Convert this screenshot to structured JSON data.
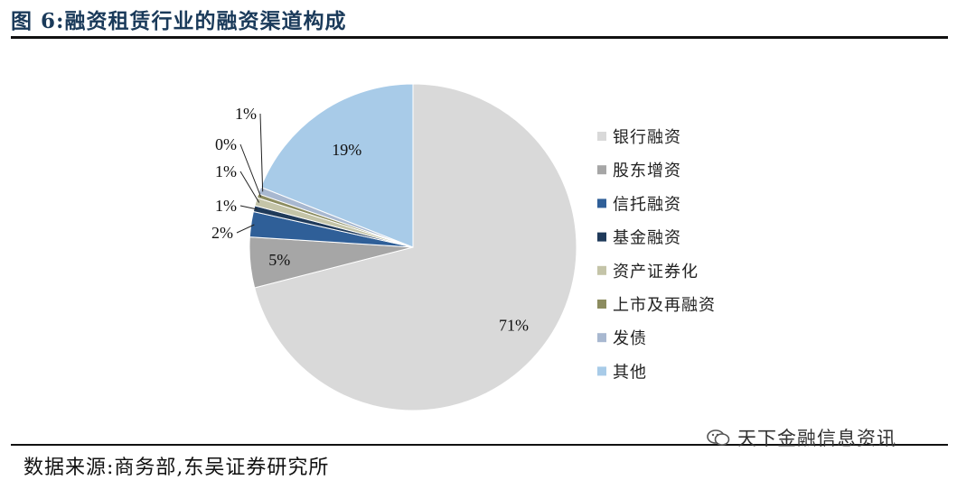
{
  "title": "图 6:融资租赁行业的融资渠道构成",
  "source": "数据来源:商务部,东吴证券研究所",
  "watermark": "天下金融信息资讯",
  "chart_data": {
    "type": "pie",
    "start_angle_deg": 0,
    "direction": "clockwise",
    "slices": [
      {
        "label": "银行融资",
        "value": 71,
        "display": "71%",
        "color": "#d9d9d9"
      },
      {
        "label": "股东增资",
        "value": 5,
        "display": "5%",
        "color": "#a6a6a6"
      },
      {
        "label": "信托融资",
        "value": 2.5,
        "display": "2%",
        "color": "#2f5f98"
      },
      {
        "label": "基金融资",
        "value": 0.6,
        "display": "1%",
        "color": "#1f3a5a"
      },
      {
        "label": "资产证券化",
        "value": 0.8,
        "display": "1%",
        "color": "#c4c4a8"
      },
      {
        "label": "上市及再融资",
        "value": 0.4,
        "display": "0%",
        "color": "#8c8c5f"
      },
      {
        "label": "发债",
        "value": 0.7,
        "display": "1%",
        "color": "#a8b8d0"
      },
      {
        "label": "其他",
        "value": 19,
        "display": "19%",
        "color": "#a8cbe8"
      }
    ],
    "legend_position": "right"
  }
}
